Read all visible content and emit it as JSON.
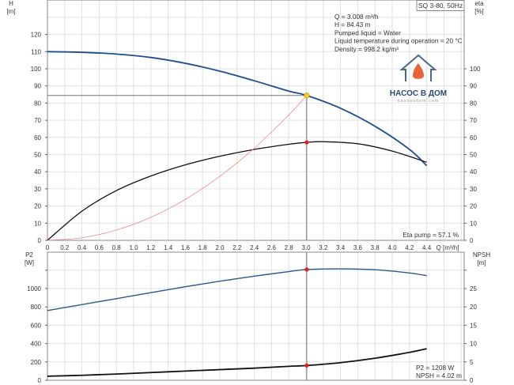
{
  "chart_data": [
    {
      "type": "line",
      "title": "SQ 3-80, 50Hz",
      "xlabel": "Q [m³/h]",
      "xlim": [
        0,
        4.83
      ],
      "x_ticks": [
        "0",
        "0.2",
        "0.4",
        "0.6",
        "0.8",
        "1.0",
        "1.2",
        "1.4",
        "1.6",
        "1.8",
        "2.0",
        "2.2",
        "2.4",
        "2.6",
        "2.8",
        "3.0",
        "3.2",
        "3.4",
        "3.6",
        "3.8",
        "4.0",
        "4.2",
        "4.4"
      ],
      "ylabel_left": [
        "H",
        "[m]"
      ],
      "ylim_left": [
        0,
        140
      ],
      "y_ticks_left": [
        "0",
        "10",
        "20",
        "30",
        "40",
        "50",
        "60",
        "70",
        "80",
        "90",
        "100",
        "110",
        "120"
      ],
      "ylabel_right": [
        "eta",
        "[%]"
      ],
      "y_ticks_right": [
        "0",
        "10",
        "20",
        "30",
        "40",
        "50",
        "60",
        "70",
        "80",
        "90",
        "100"
      ],
      "grid": true,
      "info_lines": [
        "Q = 3.008 m³/h",
        "H = 84.43 m",
        "Pumped liquid = Water",
        "Liquid temperature during operation = 20 °C",
        "Density = 998.2 kg/m³"
      ],
      "eta_label": "Eta pump = 57.1 %",
      "operating_point": {
        "q": 3.008,
        "h": 84.43,
        "eta": 57.1
      },
      "series": [
        {
          "name": "H",
          "color": "#1f4e8c",
          "x": [
            0,
            0.4,
            0.8,
            1.2,
            1.6,
            2.0,
            2.4,
            2.8,
            3.008,
            3.4,
            3.8,
            4.2,
            4.4
          ],
          "y": [
            110,
            109.6,
            108.6,
            106.6,
            103.2,
            98.6,
            93,
            87,
            84.43,
            77,
            66.5,
            53,
            43.5
          ]
        },
        {
          "name": "eta",
          "color": "#111111",
          "x": [
            0,
            0.4,
            0.8,
            1.2,
            1.6,
            2.0,
            2.4,
            2.8,
            3.008,
            3.2,
            3.6,
            4.0,
            4.4
          ],
          "y": [
            0,
            17,
            29,
            37.5,
            44,
            49,
            53,
            56,
            57.1,
            57.5,
            56.3,
            52,
            45.5
          ]
        },
        {
          "name": "system",
          "color": "#f08c84",
          "x": [
            0,
            0.4,
            0.8,
            1.2,
            1.6,
            2.0,
            2.4,
            2.8,
            3.008
          ],
          "y": [
            0,
            1.5,
            6,
            13.4,
            23.9,
            37.3,
            53.7,
            73.1,
            84.43
          ]
        }
      ]
    },
    {
      "type": "line",
      "ylabel_left": [
        "P2",
        "[W]"
      ],
      "ylim_left": [
        0,
        1350
      ],
      "y_ticks_left": [
        "0",
        "200",
        "400",
        "600",
        "800",
        "1000"
      ],
      "ylabel_right": [
        "NPSH",
        "[m]"
      ],
      "y_ticks_right": [
        "0",
        "5",
        "10",
        "15",
        "20",
        "25"
      ],
      "result_lines": [
        "P2 = 1208 W",
        "NPSH = 4.02 m"
      ],
      "series": [
        {
          "name": "P2",
          "color": "#2a5a8c",
          "x": [
            0,
            0.4,
            0.8,
            1.2,
            1.6,
            2.0,
            2.4,
            2.8,
            3.008,
            3.4,
            3.8,
            4.2,
            4.4
          ],
          "y": [
            760,
            825,
            890,
            955,
            1020,
            1080,
            1135,
            1185,
            1208,
            1215,
            1205,
            1170,
            1140
          ]
        },
        {
          "name": "NPSH",
          "color": "#111111",
          "x": [
            0,
            0.4,
            0.8,
            1.2,
            1.6,
            2.0,
            2.4,
            2.8,
            3.008,
            3.4,
            3.8,
            4.2,
            4.4
          ],
          "y": [
            1.1,
            1.35,
            1.7,
            2.1,
            2.5,
            2.9,
            3.3,
            3.8,
            4.02,
            4.8,
            6.0,
            7.6,
            8.6
          ]
        }
      ]
    }
  ],
  "logo": {
    "name": "НАСОС В ДОМ",
    "url": "nasosvdom.com",
    "color": "#e8623a",
    "text_color": "#2c4a6e"
  }
}
